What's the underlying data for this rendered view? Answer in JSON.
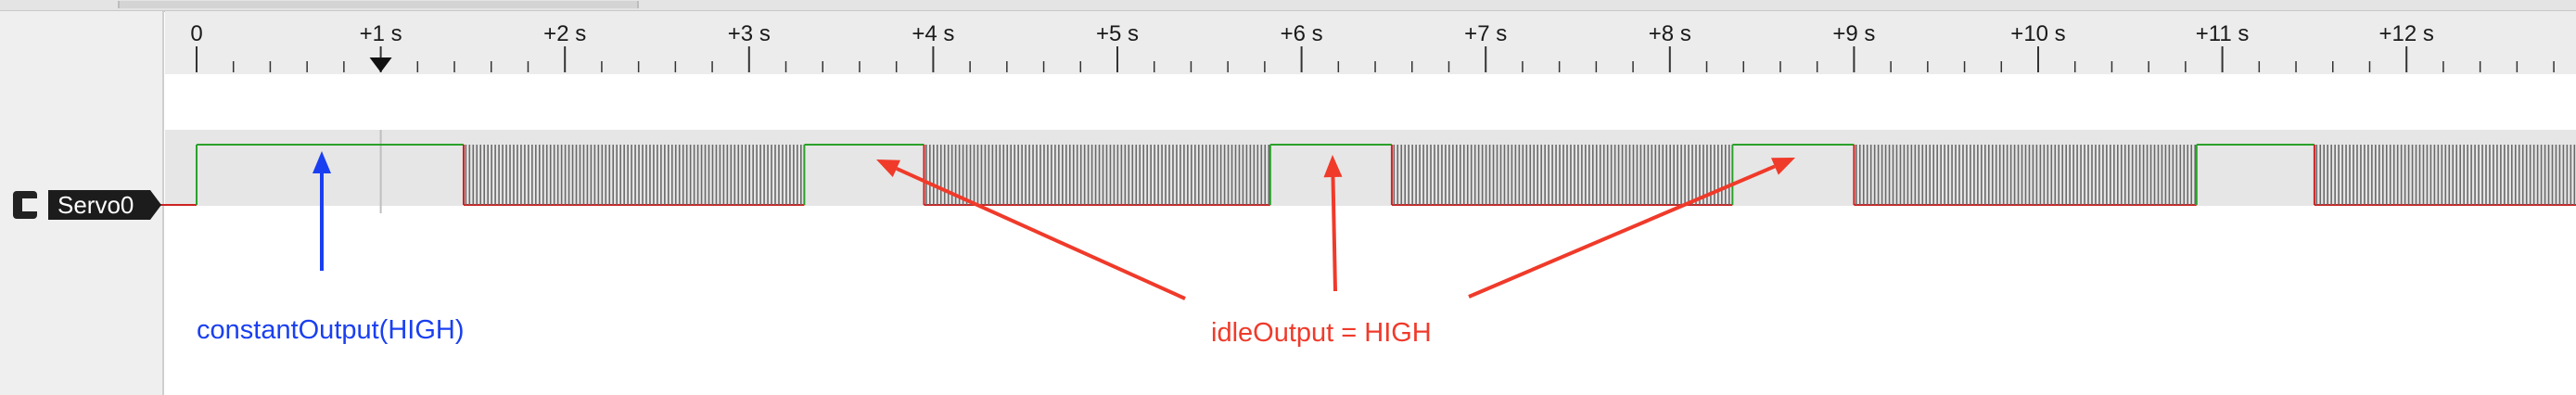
{
  "timeline": {
    "tick_labels": [
      "0",
      "+1 s",
      "+2 s",
      "+3 s",
      "+4 s",
      "+5 s",
      "+6 s",
      "+7 s",
      "+8 s",
      "+9 s",
      "+10 s",
      "+11 s",
      "+12 s"
    ]
  },
  "channel": {
    "name": "Servo0"
  },
  "annotations": {
    "constant_output": "constantOutput(HIGH)",
    "idle_output": "idleOutput = HIGH"
  },
  "colors": {
    "signal_high": "#2aa12a",
    "signal_low": "#cc2222",
    "pulse": "#6a6a6a",
    "constant_annotation": "#1a3ff0",
    "idle_annotation": "#f03a2a",
    "lane_background": "#e6e6e6",
    "ruler_background": "#ececec",
    "label_tag": "#1c1c1c"
  },
  "segments": [
    {
      "kind": "low",
      "start": -0.2,
      "end": 0.0
    },
    {
      "kind": "high",
      "start": 0.0,
      "end": 1.45
    },
    {
      "kind": "pwm",
      "start": 1.45,
      "end": 3.3
    },
    {
      "kind": "high",
      "start": 3.3,
      "end": 3.95
    },
    {
      "kind": "pwm",
      "start": 3.95,
      "end": 5.83
    },
    {
      "kind": "high",
      "start": 5.83,
      "end": 6.49
    },
    {
      "kind": "pwm",
      "start": 6.49,
      "end": 8.34
    },
    {
      "kind": "high",
      "start": 8.34,
      "end": 9.0
    },
    {
      "kind": "pwm",
      "start": 9.0,
      "end": 10.86
    },
    {
      "kind": "high",
      "start": 10.86,
      "end": 11.5
    },
    {
      "kind": "pwm",
      "start": 11.5,
      "end": 13.0
    }
  ],
  "cursor_time_s": 1.0
}
